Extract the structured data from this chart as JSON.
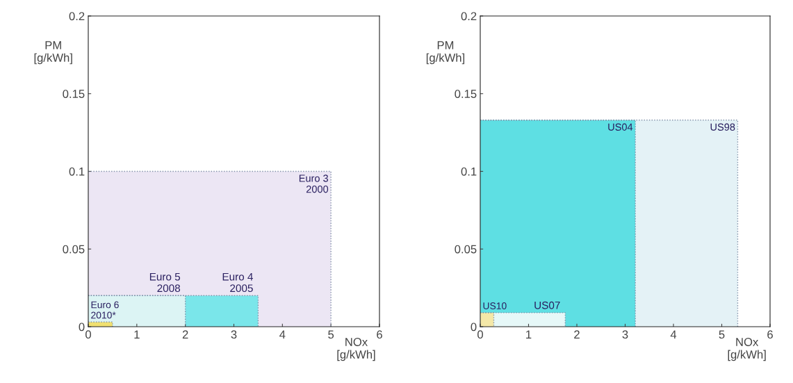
{
  "chart_data": [
    {
      "type": "area",
      "xlabel": "NOx\n[g/kWh]",
      "ylabel": "PM\n[g/kWh]",
      "xlim": [
        0,
        6
      ],
      "ylim": [
        0,
        0.2
      ],
      "xticks": [
        0,
        1,
        2,
        3,
        4,
        5,
        6
      ],
      "yticks": [
        0,
        0.05,
        0.1,
        0.15,
        0.2
      ],
      "grid": false,
      "legend": false,
      "line_style": "dotted",
      "series": [
        {
          "name": "Euro 3\n2000",
          "color": "#ece6f4",
          "x": [
            0,
            5
          ],
          "values": [
            0.1,
            0.1
          ]
        },
        {
          "name": "Euro 4\n2005",
          "color": "#7ae6ea",
          "x": [
            0,
            3.5
          ],
          "values": [
            0.02,
            0.02
          ]
        },
        {
          "name": "Euro 5\n2008",
          "color": "#dcf4f4",
          "x": [
            0,
            2
          ],
          "values": [
            0.02,
            0.02
          ]
        },
        {
          "name": "Euro 6\n2010*",
          "color": "#f0e070",
          "x": [
            0,
            0.5
          ],
          "values": [
            0.003,
            0.003
          ]
        }
      ]
    },
    {
      "type": "area",
      "xlabel": "NOx\n[g/kWh]",
      "ylabel": "PM\n[g/kWh]",
      "xlim": [
        0,
        6
      ],
      "ylim": [
        0,
        0.2
      ],
      "xticks": [
        0,
        1,
        2,
        3,
        4,
        5,
        6
      ],
      "yticks": [
        0,
        0.05,
        0.1,
        0.15,
        0.2
      ],
      "grid": false,
      "legend": false,
      "line_style": "dotted",
      "series": [
        {
          "name": "US98",
          "color": "#e4f2f6",
          "x": [
            0,
            5.33
          ],
          "values": [
            0.133,
            0.133
          ]
        },
        {
          "name": "US04",
          "color": "#5edfe3",
          "x": [
            0,
            3.21
          ],
          "values": [
            0.133,
            0.133
          ]
        },
        {
          "name": "US07",
          "color": "#e6f8f8",
          "x": [
            0,
            1.76
          ],
          "values": [
            0.009,
            0.009
          ]
        },
        {
          "name": "US10",
          "color": "#f4e8a8",
          "x": [
            0,
            0.28
          ],
          "values": [
            0.009,
            0.009
          ]
        }
      ]
    }
  ]
}
